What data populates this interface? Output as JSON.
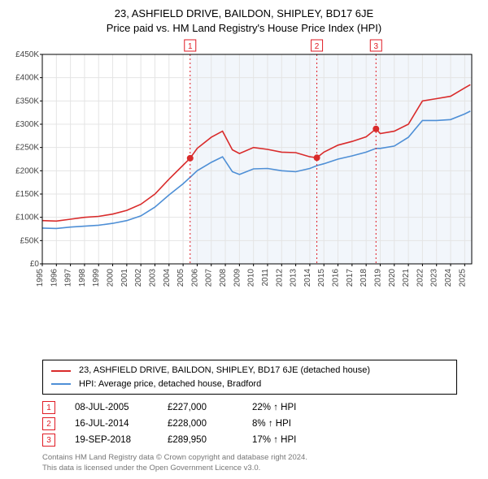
{
  "title_line1": "23, ASHFIELD DRIVE, BAILDON, SHIPLEY, BD17 6JE",
  "title_line2": "Price paid vs. HM Land Registry's House Price Index (HPI)",
  "chart": {
    "type": "line",
    "background_color": "#ffffff",
    "grid_color": "#e4e4e4",
    "border_color": "#000000",
    "y": {
      "min": 0,
      "max": 450000,
      "tick_step": 50000,
      "tick_labels": [
        "£0",
        "£50K",
        "£100K",
        "£150K",
        "£200K",
        "£250K",
        "£300K",
        "£350K",
        "£400K",
        "£450K"
      ],
      "label_fontsize": 10
    },
    "x": {
      "min": 1995,
      "max": 2025.5,
      "ticks": [
        1995,
        1996,
        1997,
        1998,
        1999,
        2000,
        2001,
        2002,
        2003,
        2004,
        2005,
        2006,
        2007,
        2008,
        2009,
        2010,
        2011,
        2012,
        2013,
        2014,
        2015,
        2016,
        2017,
        2018,
        2019,
        2020,
        2021,
        2022,
        2023,
        2024,
        2025
      ],
      "tick_labels": [
        "1995",
        "1996",
        "1997",
        "1998",
        "1999",
        "2000",
        "2001",
        "2002",
        "2003",
        "2004",
        "2005",
        "2006",
        "2007",
        "2008",
        "2009",
        "2010",
        "2011",
        "2012",
        "2013",
        "2014",
        "2015",
        "2016",
        "2017",
        "2018",
        "2019",
        "2020",
        "2021",
        "2022",
        "2023",
        "2024",
        "2025"
      ],
      "label_fontsize": 10,
      "label_rotation": -90
    },
    "shaded_region": {
      "from": 2005.5,
      "to": 2025.5,
      "color": "#f2f6fb"
    },
    "series": [
      {
        "name": "23, ASHFIELD DRIVE, BAILDON, SHIPLEY, BD17 6JE (detached house)",
        "color": "#d92b2b",
        "line_width": 1.6,
        "points_x": [
          1995,
          1996,
          1997,
          1998,
          1999,
          2000,
          2001,
          2002,
          2003,
          2004,
          2005,
          2005.5,
          2006,
          2007,
          2007.8,
          2008.5,
          2009,
          2010,
          2011,
          2012,
          2013,
          2014,
          2014.5,
          2015,
          2016,
          2017,
          2018,
          2018.7,
          2019,
          2020,
          2021,
          2022,
          2023,
          2024,
          2025,
          2025.4
        ],
        "points_y": [
          93000,
          92000,
          96000,
          100000,
          102000,
          107000,
          115000,
          128000,
          150000,
          182000,
          212000,
          227000,
          248000,
          272000,
          285000,
          245000,
          237000,
          250000,
          246000,
          240000,
          239000,
          230000,
          228000,
          240000,
          255000,
          263000,
          273000,
          289950,
          280000,
          285000,
          300000,
          350000,
          355000,
          360000,
          378000,
          385000
        ]
      },
      {
        "name": "HPI: Average price, detached house, Bradford",
        "color": "#4e8fd6",
        "line_width": 1.6,
        "points_x": [
          1995,
          1996,
          1997,
          1998,
          1999,
          2000,
          2001,
          2002,
          2003,
          2004,
          2005,
          2005.5,
          2006,
          2007,
          2007.8,
          2008.5,
          2009,
          2010,
          2011,
          2012,
          2013,
          2014,
          2014.5,
          2015,
          2016,
          2017,
          2018,
          2018.7,
          2019,
          2020,
          2021,
          2022,
          2023,
          2024,
          2025,
          2025.4
        ],
        "points_y": [
          77000,
          76000,
          79000,
          81000,
          83000,
          87000,
          93000,
          103000,
          122000,
          148000,
          172000,
          186000,
          200000,
          218000,
          230000,
          198000,
          192000,
          204000,
          205000,
          200000,
          198000,
          205000,
          211000,
          215000,
          225000,
          232000,
          240000,
          248000,
          248000,
          253000,
          272000,
          308000,
          308000,
          310000,
          322000,
          328000
        ]
      }
    ],
    "sale_markers": [
      {
        "n": "1",
        "x": 2005.5,
        "y": 227000,
        "dot_color": "#d92b2b",
        "line_color": "#e01b24"
      },
      {
        "n": "2",
        "x": 2014.5,
        "y": 228000,
        "dot_color": "#d92b2b",
        "line_color": "#e01b24"
      },
      {
        "n": "3",
        "x": 2018.7,
        "y": 289950,
        "dot_color": "#d92b2b",
        "line_color": "#e01b24"
      }
    ]
  },
  "legend": {
    "items": [
      {
        "label": "23, ASHFIELD DRIVE, BAILDON, SHIPLEY, BD17 6JE (detached house)",
        "color": "#d92b2b"
      },
      {
        "label": "HPI: Average price, detached house, Bradford",
        "color": "#4e8fd6"
      }
    ]
  },
  "sales": [
    {
      "n": "1",
      "date": "08-JUL-2005",
      "price": "£227,000",
      "delta": "22% ↑ HPI"
    },
    {
      "n": "2",
      "date": "16-JUL-2014",
      "price": "£228,000",
      "delta": "8% ↑ HPI"
    },
    {
      "n": "3",
      "date": "19-SEP-2018",
      "price": "£289,950",
      "delta": "17% ↑ HPI"
    }
  ],
  "footnote_line1": "Contains HM Land Registry data © Crown copyright and database right 2024.",
  "footnote_line2": "This data is licensed under the Open Government Licence v3.0."
}
